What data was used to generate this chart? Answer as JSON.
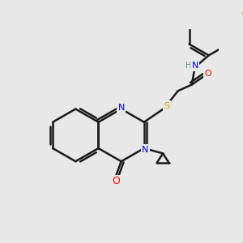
{
  "bg_color": "#e8e8e8",
  "bond_color": "#1a1a1a",
  "bond_width": 1.8,
  "atom_colors": {
    "F": "#ff69b4",
    "O": "#ff0000",
    "Cl": "#00cc00",
    "N": "#0000ff",
    "S": "#ccaa00",
    "H": "#4a9a8a"
  },
  "fontsize": 8
}
